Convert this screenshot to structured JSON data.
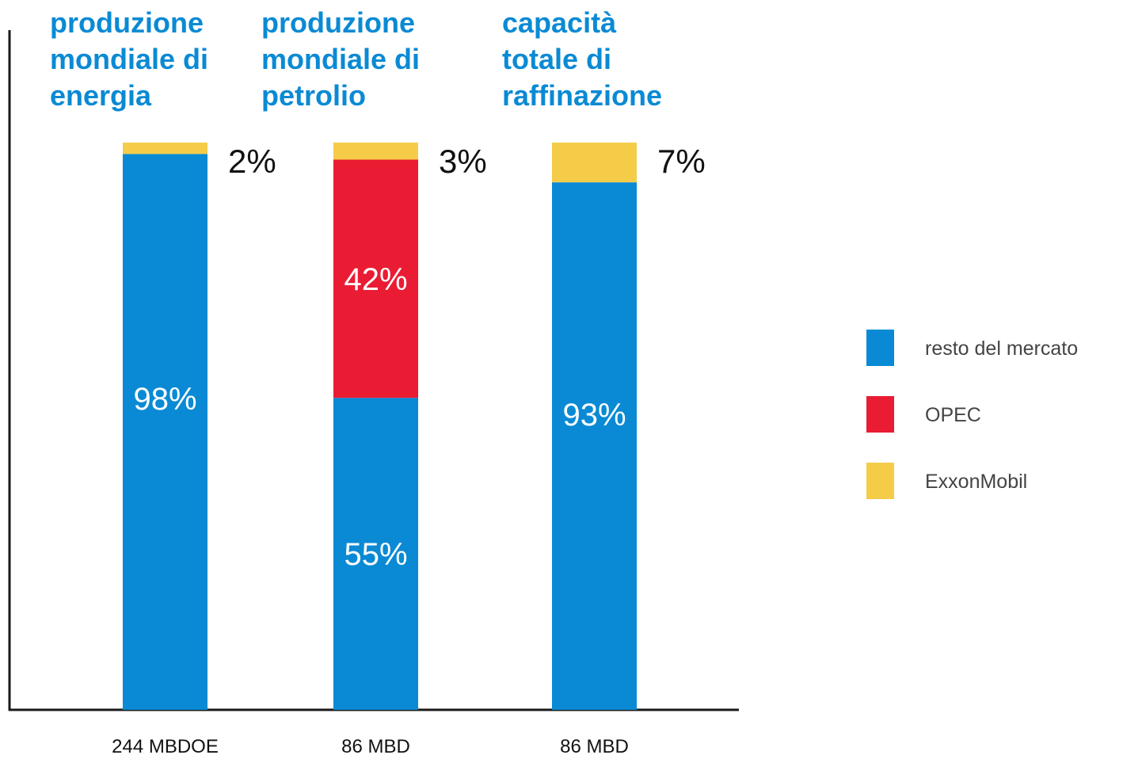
{
  "chart_data": {
    "type": "bar",
    "stacked": true,
    "percent": true,
    "ylim": [
      0,
      100
    ],
    "colors": {
      "resto": "#0a8ad4",
      "opec": "#e91c33",
      "exxon": "#f5cc48",
      "title": "#0a8ad4",
      "axis": "#1a1a1a"
    },
    "bars": [
      {
        "title_lines": [
          "produzione",
          "mondiale di",
          "energia"
        ],
        "category": "244 MBDOE",
        "top_label": "2%",
        "segments": [
          {
            "series": "resto del mercato",
            "key": "resto",
            "value": 98,
            "label": "98%"
          },
          {
            "series": "ExxonMobil",
            "key": "exxon",
            "value": 2,
            "label": ""
          }
        ]
      },
      {
        "title_lines": [
          "produzione",
          "mondiale di",
          "petrolio"
        ],
        "category": "86 MBD",
        "top_label": "3%",
        "segments": [
          {
            "series": "resto del mercato",
            "key": "resto",
            "value": 55,
            "label": "55%"
          },
          {
            "series": "OPEC",
            "key": "opec",
            "value": 42,
            "label": "42%"
          },
          {
            "series": "ExxonMobil",
            "key": "exxon",
            "value": 3,
            "label": ""
          }
        ]
      },
      {
        "title_lines": [
          "capacità",
          "totale di",
          "raffinazione"
        ],
        "category": "86 MBD",
        "top_label": "7%",
        "segments": [
          {
            "series": "resto del mercato",
            "key": "resto",
            "value": 93,
            "label": "93%"
          },
          {
            "series": "ExxonMobil",
            "key": "exxon",
            "value": 7,
            "label": ""
          }
        ]
      }
    ],
    "legend": [
      {
        "name": "resto del mercato",
        "key": "resto"
      },
      {
        "name": "OPEC",
        "key": "opec"
      },
      {
        "name": "ExxonMobil",
        "key": "exxon"
      }
    ],
    "legend_position": "right"
  }
}
